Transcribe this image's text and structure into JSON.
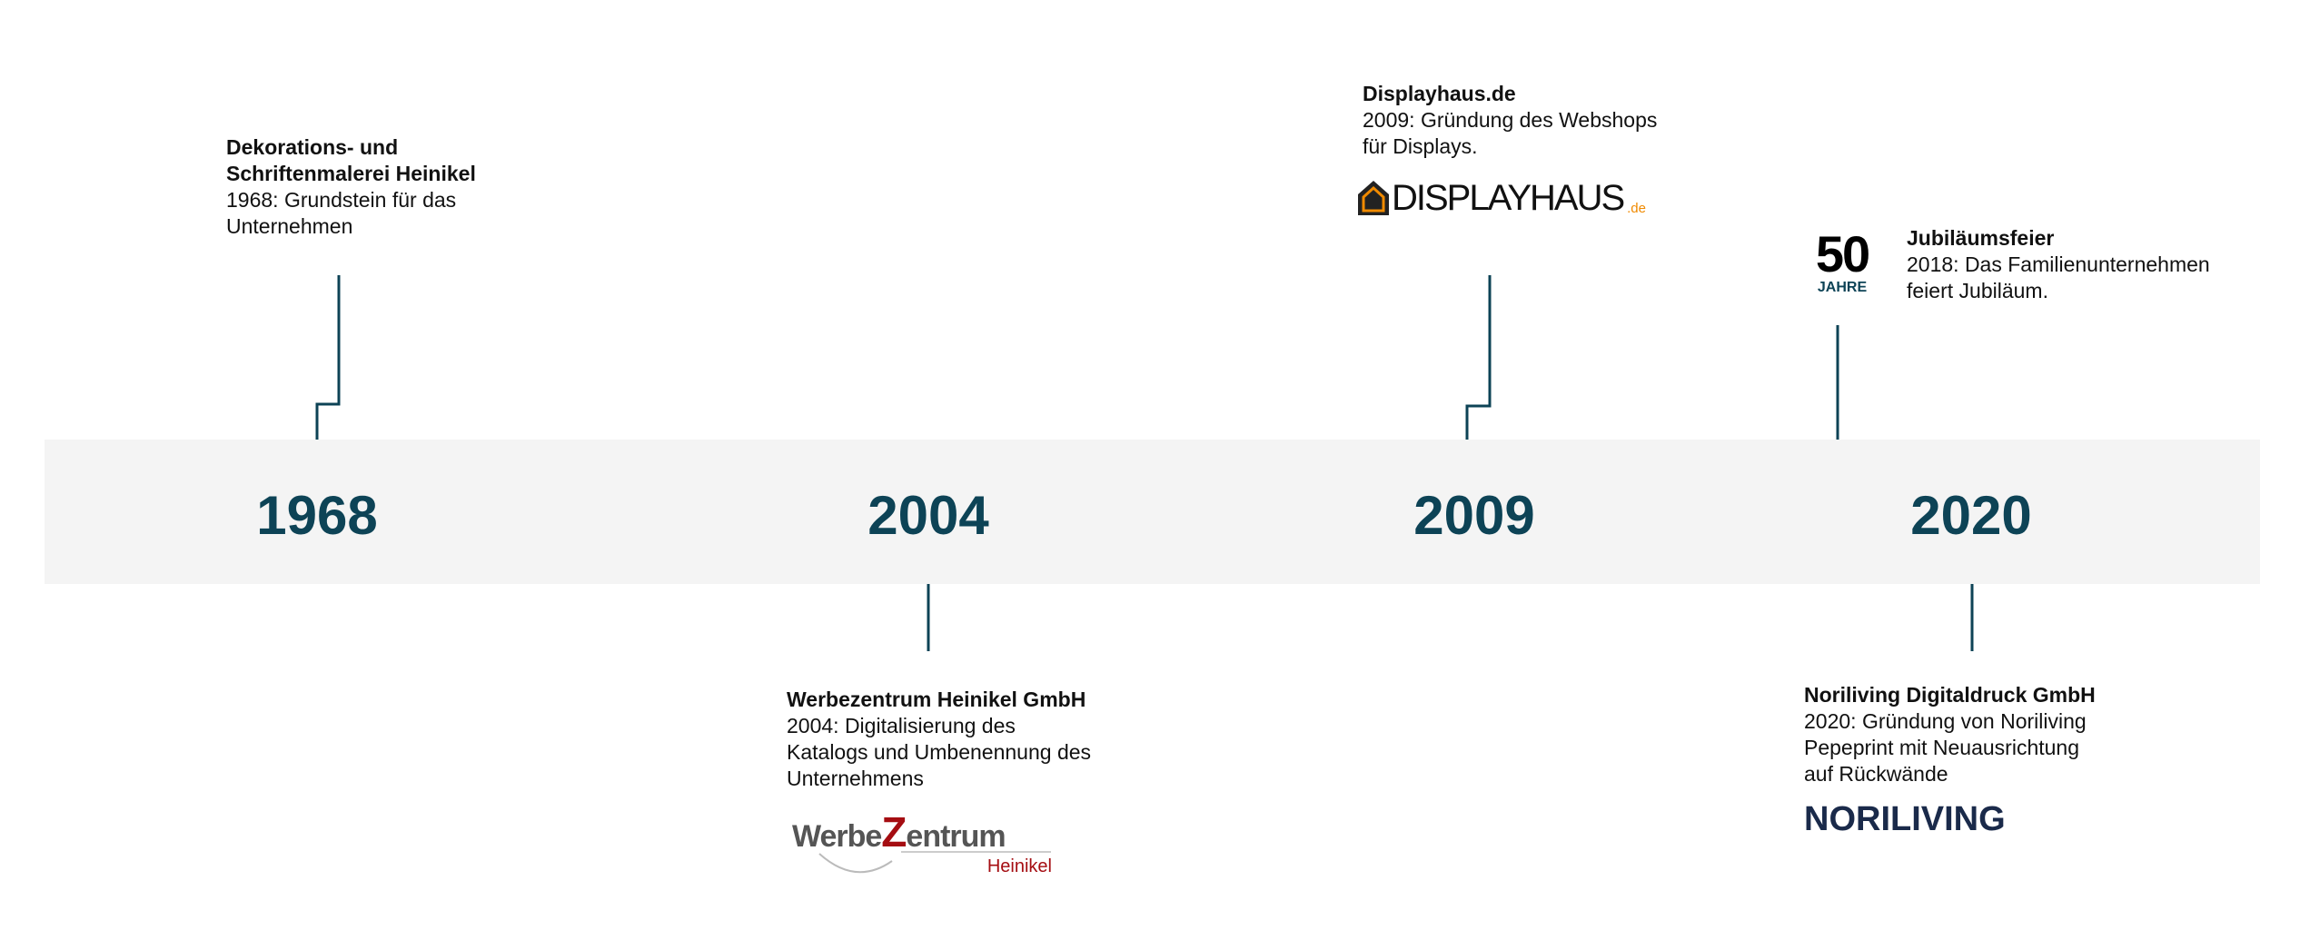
{
  "colors": {
    "accent": "#0d4356",
    "band": "#f4f4f4"
  },
  "years": [
    "1968",
    "2004",
    "2009",
    "2020"
  ],
  "events": {
    "e1968": {
      "title_lines": [
        "Dekorations- und",
        "Schriftenmalerei Heinikel"
      ],
      "text_lines": [
        "1968: Grundstein für das",
        "Unternehmen"
      ]
    },
    "e2004": {
      "title": "Werbezentrum Heinikel GmbH",
      "text_lines": [
        "2004: Digitalisierung des",
        "Katalogs und Umbenennung des",
        "Unternehmens"
      ],
      "logo": {
        "main_a": "Werbe",
        "main_z": "Z",
        "main_b": "entrum",
        "sub": "Heinikel"
      }
    },
    "e2009": {
      "title": "Displayhaus.de",
      "text_lines": [
        "2009: Gründung des Webshops",
        "für Displays."
      ],
      "logo": {
        "main": "DISPLAYHAUS",
        "suffix": ".de"
      }
    },
    "e2018": {
      "title": "Jubiläumsfeier",
      "text_lines": [
        "2018: Das Familienunternehmen",
        "feiert Jubiläum."
      ],
      "badge": {
        "number": "50",
        "label": "JAHRE"
      }
    },
    "e2020": {
      "title": "Noriliving Digitaldruck GmbH",
      "text_lines": [
        "2020: Gründung von Noriliving",
        "Pepeprint mit Neuausrichtung",
        "auf Rückwände"
      ],
      "logo": {
        "main": "NORILIVING"
      }
    }
  }
}
